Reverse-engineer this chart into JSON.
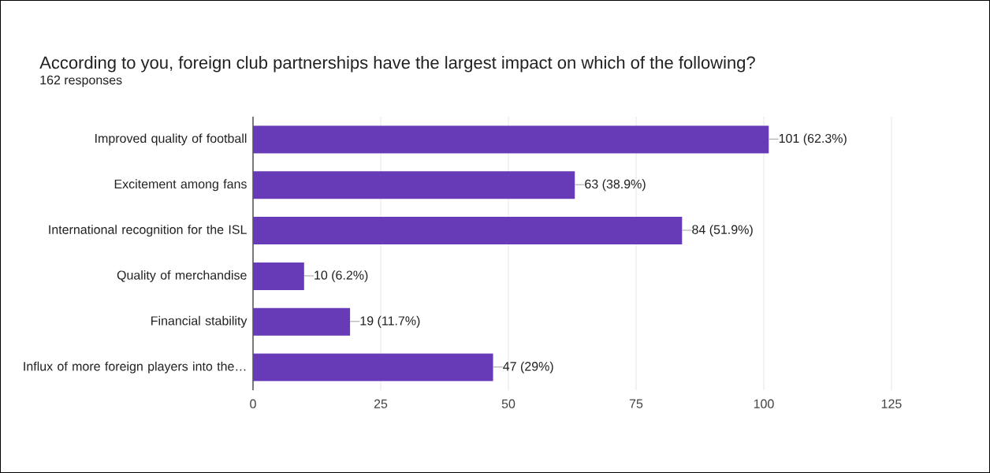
{
  "chart_data": {
    "type": "bar",
    "orientation": "horizontal",
    "title": "According to you, foreign club partnerships have the largest impact on which of the following?",
    "subtitle": "162 responses",
    "categories": [
      "Improved quality of football",
      "Excitement among fans",
      "International recognition for the ISL",
      "Quality of merchandise",
      "Financial stability",
      "Influx of more foreign players into the…"
    ],
    "values": [
      101,
      63,
      84,
      10,
      19,
      47
    ],
    "value_labels": [
      "101 (62.3%)",
      "63 (38.9%)",
      "84 (51.9%)",
      "10 (6.2%)",
      "19 (11.7%)",
      "47 (29%)"
    ],
    "color": "#673ab7",
    "xlim": [
      0,
      125
    ],
    "xticks": [
      0,
      25,
      50,
      75,
      100,
      125
    ],
    "grid": "x"
  }
}
